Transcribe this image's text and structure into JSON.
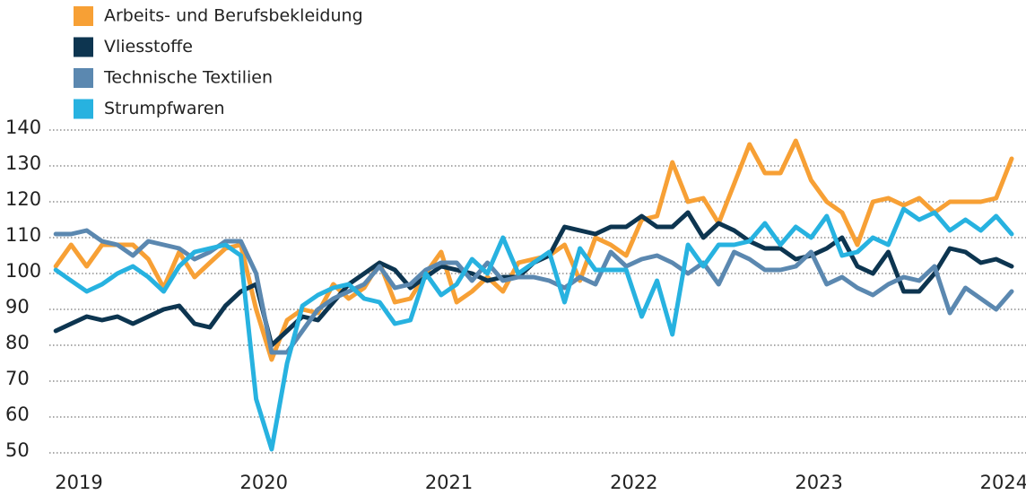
{
  "chart_data": {
    "type": "line",
    "legend": "top-left",
    "grid": true,
    "xlim": [
      2018.84,
      2024.1
    ],
    "xticks": [
      2019,
      2020,
      2021,
      2022,
      2023,
      2024
    ],
    "ylim": [
      50,
      140
    ],
    "yticks": [
      50,
      60,
      70,
      80,
      90,
      100,
      110,
      120,
      130,
      140
    ],
    "x": [
      2018.875,
      2018.958,
      2019.042,
      2019.125,
      2019.208,
      2019.292,
      2019.375,
      2019.458,
      2019.542,
      2019.625,
      2019.708,
      2019.792,
      2019.875,
      2019.958,
      2020.042,
      2020.125,
      2020.208,
      2020.292,
      2020.375,
      2020.458,
      2020.542,
      2020.625,
      2020.708,
      2020.792,
      2020.875,
      2020.958,
      2021.042,
      2021.125,
      2021.208,
      2021.292,
      2021.375,
      2021.458,
      2021.542,
      2021.625,
      2021.708,
      2021.792,
      2021.875,
      2021.958,
      2022.042,
      2022.125,
      2022.208,
      2022.292,
      2022.375,
      2022.458,
      2022.542,
      2022.625,
      2022.708,
      2022.792,
      2022.875,
      2022.958,
      2023.042,
      2023.125,
      2023.208,
      2023.292,
      2023.375,
      2023.458,
      2023.542,
      2023.625,
      2023.708,
      2023.792,
      2023.875,
      2023.958,
      2024.042
    ],
    "series": [
      {
        "name": "Arbeits- und Berufsbekleidung",
        "color": "#f7a035",
        "values": [
          102,
          108,
          102,
          108,
          108,
          108,
          104,
          96,
          106,
          99,
          103,
          107,
          108,
          90,
          76,
          87,
          90,
          89,
          97,
          93,
          96,
          103,
          92,
          93,
          100,
          106,
          92,
          95,
          99,
          95,
          103,
          104,
          105,
          108,
          98,
          110,
          108,
          105,
          115,
          116,
          131,
          120,
          121,
          114,
          125,
          136,
          128,
          128,
          137,
          126,
          120,
          117,
          108,
          120,
          121,
          119,
          121,
          117,
          120,
          120,
          120,
          121,
          132
        ]
      },
      {
        "name": "Vliesstoffe",
        "color": "#0d3550",
        "values": [
          84,
          86,
          88,
          87,
          88,
          86,
          88,
          90,
          91,
          86,
          85,
          91,
          95,
          97,
          80,
          84,
          88,
          87,
          92,
          97,
          100,
          103,
          101,
          96,
          99,
          102,
          101,
          100,
          98,
          99,
          99,
          103,
          105,
          113,
          112,
          111,
          113,
          113,
          116,
          113,
          113,
          117,
          110,
          114,
          112,
          109,
          107,
          107,
          104,
          105,
          107,
          110,
          102,
          100,
          106,
          95,
          95,
          100,
          107,
          106,
          103,
          104,
          102
        ]
      },
      {
        "name": "Technische Textilien",
        "color": "#5b88b0",
        "values": [
          111,
          111,
          112,
          109,
          108,
          105,
          109,
          108,
          107,
          104,
          106,
          109,
          109,
          100,
          78,
          78,
          84,
          90,
          93,
          95,
          97,
          102,
          96,
          97,
          101,
          103,
          103,
          98,
          103,
          98,
          99,
          99,
          98,
          96,
          99,
          97,
          106,
          102,
          104,
          105,
          103,
          100,
          103,
          97,
          106,
          104,
          101,
          101,
          102,
          106,
          97,
          99,
          96,
          94,
          97,
          99,
          98,
          102,
          89,
          96,
          93,
          90,
          95
        ]
      },
      {
        "name": "Strumpfwaren",
        "color": "#27b2e0",
        "values": [
          101,
          98,
          95,
          97,
          100,
          102,
          99,
          95,
          102,
          106,
          107,
          108,
          105,
          65,
          51,
          75,
          91,
          94,
          96,
          97,
          93,
          92,
          86,
          87,
          100,
          94,
          97,
          104,
          100,
          110,
          100,
          103,
          106,
          92,
          107,
          101,
          101,
          101,
          88,
          98,
          83,
          108,
          102,
          108,
          108,
          109,
          114,
          108,
          113,
          110,
          116,
          105,
          106,
          110,
          108,
          118,
          115,
          117,
          112,
          115,
          112,
          116,
          111
        ]
      }
    ]
  }
}
